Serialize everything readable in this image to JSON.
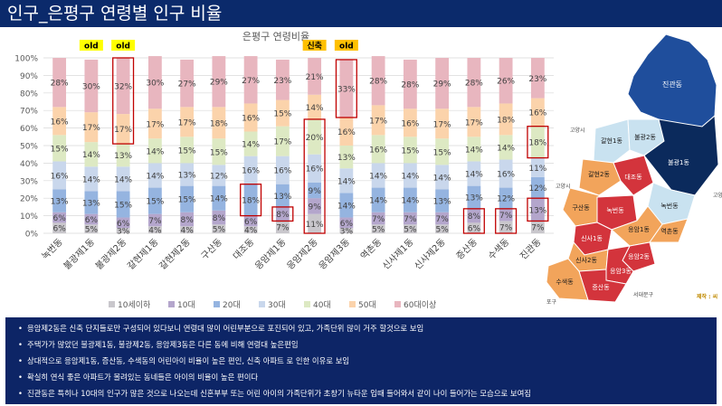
{
  "slide_title": "인구_은평구 연령별 인구 비율",
  "chart_data": {
    "type": "bar",
    "stacked": true,
    "percent": true,
    "title": "은평구 연령비율",
    "ylim": [
      0,
      100
    ],
    "yticks": [
      "0%",
      "10%",
      "20%",
      "30%",
      "40%",
      "50%",
      "60%",
      "70%",
      "80%",
      "90%",
      "100%"
    ],
    "grid": true,
    "legend_position": "bottom",
    "categories": [
      "녹번동",
      "불광제1동",
      "불광제2동",
      "갈현제1동",
      "갈현제2동",
      "구산동",
      "대조동",
      "응암제1동",
      "응암제2동",
      "응암제3동",
      "역촌동",
      "신사제1동",
      "신사제2동",
      "증산동",
      "수색동",
      "진관동"
    ],
    "series": [
      {
        "name": "10세이하",
        "color": "#c9c7cc",
        "values": [
          6,
          5,
          3,
          4,
          4,
          5,
          4,
          7,
          11,
          3,
          5,
          5,
          5,
          6,
          7,
          7
        ]
      },
      {
        "name": "10대",
        "color": "#b4a6cc",
        "values": [
          6,
          6,
          6,
          7,
          8,
          8,
          6,
          8,
          9,
          6,
          7,
          7,
          7,
          8,
          7,
          13
        ]
      },
      {
        "name": "20대",
        "color": "#95b4e0",
        "values": [
          13,
          13,
          15,
          15,
          15,
          14,
          18,
          13,
          9,
          14,
          14,
          14,
          13,
          13,
          12,
          12
        ]
      },
      {
        "name": "30대",
        "color": "#c9d7ec",
        "values": [
          16,
          14,
          14,
          14,
          13,
          12,
          16,
          16,
          16,
          14,
          14,
          14,
          14,
          14,
          16,
          11
        ]
      },
      {
        "name": "40대",
        "color": "#dde9c3",
        "values": [
          15,
          14,
          13,
          14,
          15,
          15,
          14,
          17,
          20,
          13,
          16,
          15,
          15,
          14,
          14,
          18
        ]
      },
      {
        "name": "50대",
        "color": "#fbd3ab",
        "values": [
          16,
          17,
          17,
          17,
          17,
          18,
          16,
          15,
          14,
          16,
          17,
          16,
          17,
          17,
          18,
          16
        ]
      },
      {
        "name": "60대이상",
        "color": "#e8b6bf",
        "values": [
          28,
          30,
          32,
          30,
          27,
          29,
          27,
          23,
          21,
          33,
          28,
          28,
          29,
          28,
          26,
          23
        ]
      }
    ],
    "highlights": [
      {
        "category": "불광제2동",
        "series": [
          "50대",
          "60대이상"
        ]
      },
      {
        "category": "대조동",
        "series": [
          "20대"
        ]
      },
      {
        "category": "응암제1동",
        "series": [
          "10대"
        ]
      },
      {
        "category": "응암제2동",
        "series": [
          "10세이하",
          "10대",
          "30대",
          "40대"
        ]
      },
      {
        "category": "응암제3동",
        "series": [
          "60대이상"
        ]
      },
      {
        "category": "증산동",
        "series": [
          "10세이하",
          "10대"
        ]
      },
      {
        "category": "수색동",
        "series": [
          "10세이하",
          "10대"
        ]
      },
      {
        "category": "진관동",
        "series": [
          "10대"
        ]
      },
      {
        "category": "진관동",
        "series": [
          "40대"
        ]
      }
    ],
    "tags": [
      {
        "category": "불광제1동",
        "text": "old",
        "color": "#ffff00"
      },
      {
        "category": "불광제2동",
        "text": "old",
        "color": "#ffff00"
      },
      {
        "category": "응암제2동",
        "text": "신축",
        "color": "#ffc000"
      },
      {
        "category": "응암제3동",
        "text": "old",
        "color": "#ffc000"
      }
    ]
  },
  "map": {
    "regions": [
      {
        "name": "진관동",
        "color": "#1f4e9c"
      },
      {
        "name": "갈현1동",
        "color": "#c9e2f0"
      },
      {
        "name": "불광2동",
        "color": "#c9e2f0"
      },
      {
        "name": "불광1동",
        "color": "#0b2a5c"
      },
      {
        "name": "갈현2동",
        "color": "#f2a45b"
      },
      {
        "name": "구산동",
        "color": "#f2a45b"
      },
      {
        "name": "대조동",
        "color": "#d3343c"
      },
      {
        "name": "녹번동",
        "color": "#c9e2f0"
      },
      {
        "name": "녹번동",
        "color": "#d3343c"
      },
      {
        "name": "신사1동",
        "color": "#d3343c"
      },
      {
        "name": "응암1동",
        "color": "#f2a45b"
      },
      {
        "name": "역촌동",
        "color": "#f2a45b"
      },
      {
        "name": "신사2동",
        "color": "#f2a45b"
      },
      {
        "name": "응암2동",
        "color": "#d3343c"
      },
      {
        "name": "응암3동",
        "color": "#d3343c"
      },
      {
        "name": "증산동",
        "color": "#d3343c"
      },
      {
        "name": "수색동",
        "color": "#f2a45b"
      }
    ],
    "labels": [
      "고양시",
      "고양시",
      "고양시",
      "포구",
      "서대문구"
    ],
    "credit": "제작 : 씨"
  },
  "notes": [
    "응암제2동은 신축 단지들로만 구성되어 있다보니 연령대 많이 어린부분으로 포진되어 있고, 가족단위 많이 거주 할것으로 보임",
    "주택가가 많았던 불광제1동, 불광제2동, 응암제3동은 다른 동에 비해 연령대 높은편임",
    "상대적으로 응암제1동, 증산동, 수색동의 어린아이 비율이 높은 편인, 신축 아파트 로 인한 이유로 보임",
    "확실히 연식 좋은 아파트가 몰려있는 동네들은 아이의 비율이 높은 편이다",
    "진관동은 특히나 10대의 인구가 많은 것으로 나오는데 신혼부부 또는 어린 아이의 가족단위가 초창기 뉴타운 입때 들어와서 같이 나이 들어가는 모습으로 보여짐"
  ]
}
